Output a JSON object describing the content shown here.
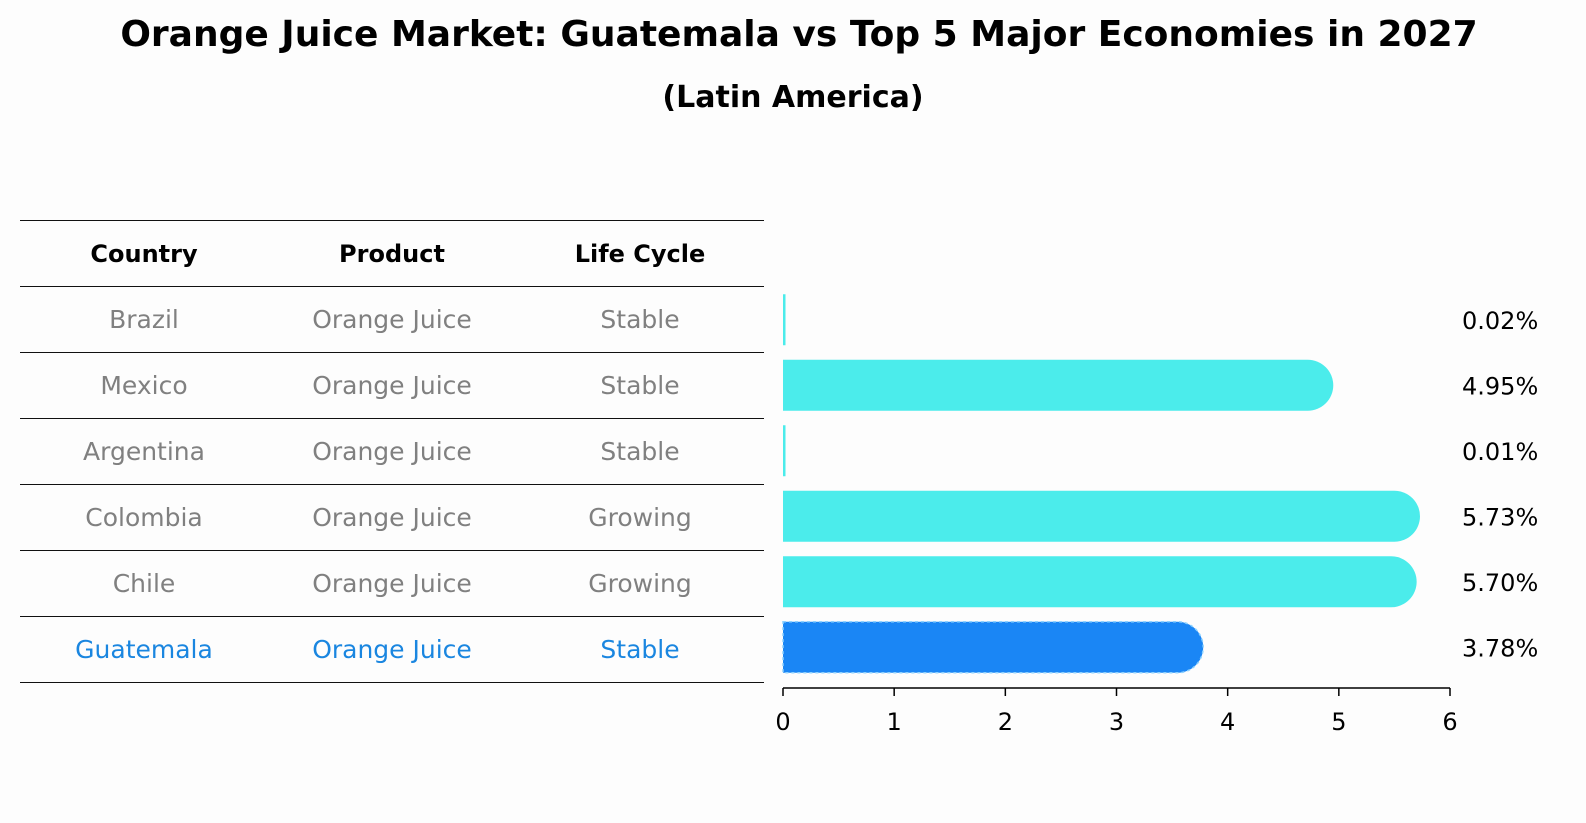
{
  "title": "Orange Juice Market: Guatemala vs Top 5 Major Economies in 2027",
  "subtitle": "(Latin America)",
  "table": {
    "headers": [
      "Country",
      "Product",
      "Life Cycle"
    ],
    "rows": [
      {
        "country": "Brazil",
        "product": "Orange Juice",
        "life_cycle": "Stable"
      },
      {
        "country": "Mexico",
        "product": "Orange Juice",
        "life_cycle": "Stable"
      },
      {
        "country": "Argentina",
        "product": "Orange Juice",
        "life_cycle": "Stable"
      },
      {
        "country": "Colombia",
        "product": "Orange Juice",
        "life_cycle": "Growing"
      },
      {
        "country": "Chile",
        "product": "Orange Juice",
        "life_cycle": "Growing"
      },
      {
        "country": "Guatemala",
        "product": "Orange Juice",
        "life_cycle": "Stable"
      }
    ]
  },
  "colors": {
    "bar": "#4beceb",
    "highlight_bar": "#1a86f5",
    "highlight_text": "#1a86e0",
    "muted_text": "#808080"
  },
  "chart_data": {
    "type": "bar",
    "orientation": "horizontal",
    "categories": [
      "Brazil",
      "Mexico",
      "Argentina",
      "Colombia",
      "Chile",
      "Guatemala"
    ],
    "values": [
      0.02,
      4.95,
      0.01,
      5.73,
      5.7,
      3.78
    ],
    "value_labels": [
      "0.02%",
      "4.95%",
      "0.01%",
      "5.73%",
      "5.70%",
      "3.78%"
    ],
    "highlight": "Guatemala",
    "xlim": [
      0,
      6
    ],
    "xticks": [
      0,
      1,
      2,
      3,
      4,
      5,
      6
    ],
    "xlabel": "",
    "ylabel": "",
    "grid": false
  }
}
